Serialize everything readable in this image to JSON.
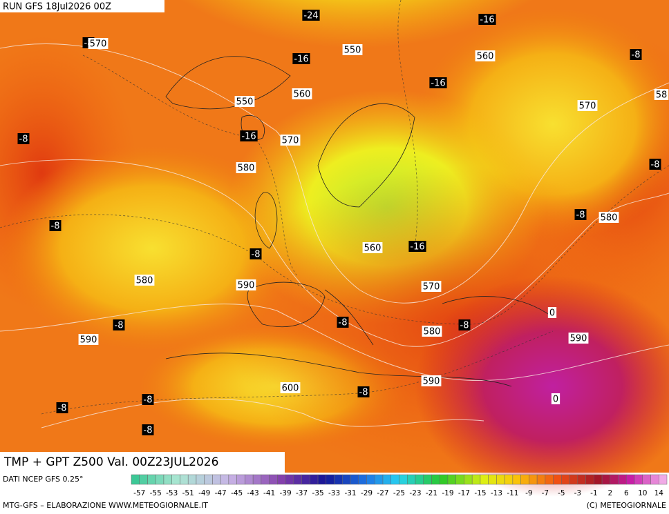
{
  "header": {
    "run": "RUN GFS 18Jul2026 00Z",
    "title": "TMP + GPT Z500 Val. 00Z23JUL2026"
  },
  "map": {
    "temperature_labels": [
      "-24",
      "-16",
      "-16",
      "-16",
      "-16",
      "-8",
      "-8",
      "-8",
      "-8",
      "-8",
      "-8",
      "-8",
      "-16",
      "-8",
      "-8",
      "-8",
      "-8",
      "-8",
      "-8",
      "-8"
    ],
    "height_labels": [
      "570",
      "550",
      "560",
      "560",
      "550",
      "570",
      "570",
      "580",
      "580",
      "560",
      "580",
      "590",
      "570",
      "0",
      "590",
      "580",
      "590",
      "590",
      "600",
      "0",
      "58"
    ]
  },
  "colorbar": {
    "source": "DATI NCEP GFS 0.25°",
    "labels": [
      "-57",
      "-55",
      "-53",
      "-51",
      "-49",
      "-47",
      "-45",
      "-43",
      "-41",
      "-39",
      "-37",
      "-35",
      "-33",
      "-31",
      "-29",
      "-27",
      "-25",
      "-23",
      "-21",
      "-19",
      "-17",
      "-15",
      "-13",
      "-11",
      "-9",
      "-7",
      "-5",
      "-3",
      "-1",
      "2",
      "6",
      "10",
      "14"
    ]
  },
  "footer": {
    "left": "MTG-GFS – ELABORAZIONE WWW.METEOGIORNALE.IT",
    "right": "(C) METEOGIORNALE"
  }
}
